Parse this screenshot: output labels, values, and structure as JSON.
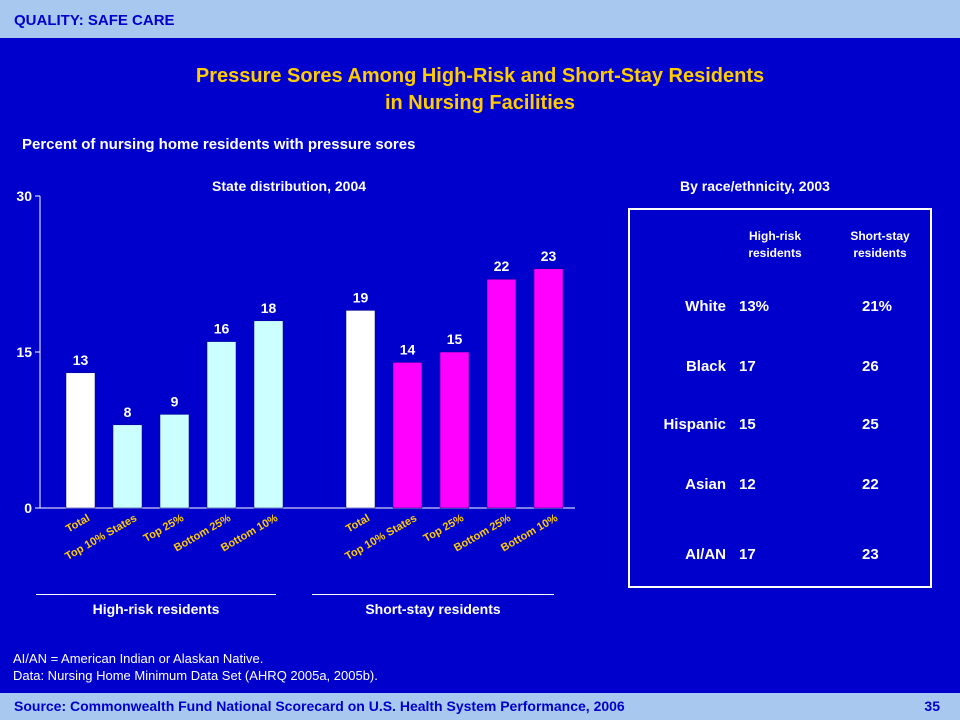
{
  "header": {
    "label": "QUALITY: SAFE CARE"
  },
  "title_line1": "Pressure Sores Among High-Risk and Short-Stay Residents",
  "title_line2": "in Nursing Facilities",
  "subtitle": "Percent of nursing home residents with pressure sores",
  "chart_data": {
    "type": "bar",
    "title": "State distribution, 2004",
    "ylim": [
      0,
      30
    ],
    "yticks": [
      "0",
      "15",
      "30"
    ],
    "groups": [
      {
        "name": "High-risk residents",
        "categories": [
          "Total",
          "Top 10% States",
          "Top 25%",
          "Bottom 25%",
          "Bottom 10%"
        ],
        "values": [
          13,
          8,
          9,
          16,
          18
        ],
        "colors": [
          "#ffffff",
          "#ccffff",
          "#ccffff",
          "#ccffff",
          "#ccffff"
        ]
      },
      {
        "name": "Short-stay residents",
        "categories": [
          "Total",
          "Top 10% States",
          "Top 25%",
          "Bottom 25%",
          "Bottom 10%"
        ],
        "values": [
          19,
          14,
          15,
          22,
          23
        ],
        "colors": [
          "#ffffff",
          "#ff00ff",
          "#ff00ff",
          "#ff00ff",
          "#ff00ff"
        ]
      }
    ]
  },
  "race": {
    "title": "By race/ethnicity, 2003",
    "col1_line1": "High-risk",
    "col1_line2": "residents",
    "col2_line1": "Short-stay",
    "col2_line2": "residents",
    "rows": [
      {
        "label": "White",
        "high_risk": "13%",
        "short_stay": "21%"
      },
      {
        "label": "Black",
        "high_risk": "17",
        "short_stay": "26"
      },
      {
        "label": "Hispanic",
        "high_risk": "15",
        "short_stay": "25"
      },
      {
        "label": "Asian",
        "high_risk": "12",
        "short_stay": "22"
      },
      {
        "label": "AI/AN",
        "high_risk": "17",
        "short_stay": "23"
      }
    ]
  },
  "footnote_line1": "AI/AN = American Indian or Alaskan Native.",
  "footnote_line2": "Data: Nursing Home Minimum Data Set (AHRQ 2005a, 2005b).",
  "footer": {
    "source": "Source: Commonwealth Fund National Scorecard on U.S. Health System Performance, 2006",
    "page": "35"
  }
}
